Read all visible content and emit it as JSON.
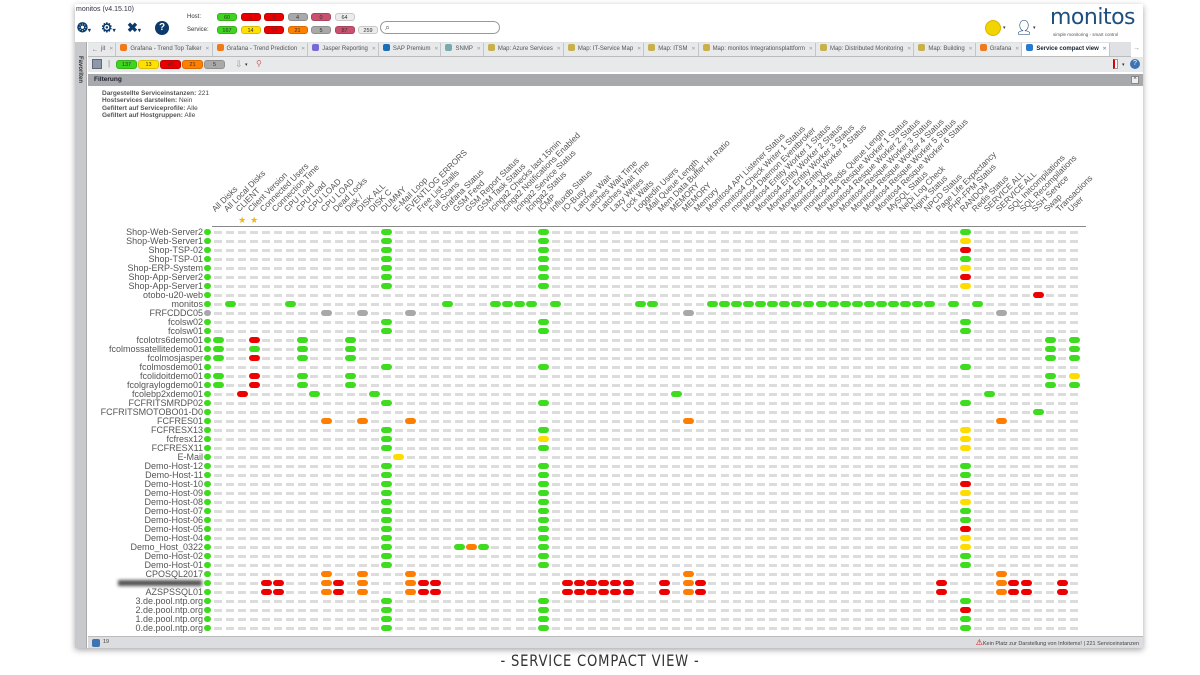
{
  "app": {
    "title": "monitos (v4.15.10)",
    "search_placeholder": "",
    "logo": "monitos",
    "logo_tagline": "simple monitoring - smart control"
  },
  "host_counts": {
    "label": "Host:",
    "values": [
      {
        "value": "60",
        "color": "#3fd41f"
      },
      {
        "value": "0",
        "color": "#e80000"
      },
      {
        "value": "0",
        "color": "#e80000"
      },
      {
        "value": "4",
        "color": "#a9a9a9"
      },
      {
        "value": "0",
        "color": "#c9506f"
      },
      {
        "value": "64",
        "color": "#ececec"
      }
    ]
  },
  "service_counts": {
    "label": "Service:",
    "values": [
      {
        "value": "167",
        "color": "#3fd41f"
      },
      {
        "value": "14",
        "color": "#ffe000"
      },
      {
        "value": "52",
        "color": "#e80000"
      },
      {
        "value": "21",
        "color": "#ff7f00"
      },
      {
        "value": "5",
        "color": "#a9a9a9"
      },
      {
        "value": "87",
        "color": "#c9506f"
      },
      {
        "value": "259",
        "color": "#ececec"
      }
    ]
  },
  "sidebar": {
    "label": "Favoriten"
  },
  "tabs": [
    {
      "label": "jit",
      "icon": "back-icon"
    },
    {
      "label": "Grafana - Trend Top Talker",
      "icon": "grafana-icon"
    },
    {
      "label": "Grafana - Trend Prediction",
      "icon": "grafana-icon"
    },
    {
      "label": "Jasper Reporting",
      "icon": "jasper-icon"
    },
    {
      "label": "SAP Premium",
      "icon": "sap-icon"
    },
    {
      "label": "SNMP",
      "icon": "snmp-icon"
    },
    {
      "label": "Map: Azure Services",
      "icon": "map-icon"
    },
    {
      "label": "Map: IT-Service Map",
      "icon": "map-icon"
    },
    {
      "label": "Map: ITSM",
      "icon": "map-icon"
    },
    {
      "label": "Map: monitos Integrationsplattform",
      "icon": "map-icon"
    },
    {
      "label": "Map: Distributed Monitoring",
      "icon": "map-icon"
    },
    {
      "label": "Map: Building",
      "icon": "map-icon"
    },
    {
      "label": "Grafana",
      "icon": "grafana-icon"
    },
    {
      "label": "Service compact view",
      "icon": "grid-icon",
      "active": true
    }
  ],
  "toolbar": {
    "counts": [
      {
        "value": "137",
        "color": "#3fd41f"
      },
      {
        "value": "13",
        "color": "#ffe000"
      },
      {
        "value": "45",
        "color": "#e80000"
      },
      {
        "value": "21",
        "color": "#ff7f00"
      },
      {
        "value": "5",
        "color": "#a9a9a9"
      }
    ]
  },
  "filter": {
    "title": "Filterung",
    "lines": [
      {
        "label": "Dargestellte Serviceinstanzen:",
        "value": "221"
      },
      {
        "label": "Hostservices darstellen:",
        "value": "Nein"
      },
      {
        "label": "Gefiltert auf Serviceprofile:",
        "value": "Alle"
      },
      {
        "label": "Gefiltert auf Hostgruppen:",
        "value": "Alle"
      }
    ]
  },
  "state_colors": {
    "g": "#3ddc1e",
    "y": "#ffdc00",
    "r": "#ee0000",
    "o": "#ff7d00",
    "x": "#a8a8a8"
  },
  "favorite_columns": [
    2,
    3
  ],
  "columns": [
    "All Disks",
    "All Local Disks",
    "CLIENT",
    "Client Version",
    "Connected Users",
    "Connection Time",
    "CPU Load",
    "CPU Load",
    "CPU LOAD",
    "CPU LOAD",
    "Dead Locks",
    "Disk /",
    "DISK ALL",
    "DISK C",
    "DUMMY",
    "E-Mail Loop",
    "EVENTLOG ERRORS",
    "Free List Stalls",
    "Full Scans",
    "Grafana Status",
    "GSM Feed",
    "GSM Report Status",
    "GSM Task Status",
    "Icinga2 Checks last 15min",
    "Icinga2 Notifications Enabled",
    "Icinga2 Service Status",
    "Icinga2 Status",
    "ICMP",
    "Influxdb Status",
    "IO-Busy",
    "Latches Wait",
    "Latches Wait Time",
    "Latches Wait Time",
    "Lazy Writes",
    "Lock Waits",
    "Loggedin Users",
    "Mail Queue Length",
    "Mem Data Buffer Hit Ratio",
    "MEMORY",
    "MEMORY",
    "Memory",
    "Monitos4 API Listener Status",
    "monitos4 Check Writer 1 Status",
    "monitos4 Daemon Eventbroker",
    "Monitos4 Entity Worker 1 Status",
    "Monitos4 Entity Worker 2 Status",
    "Monitos4 Entity Worker 3 Status",
    "Monitos4 Entity Worker 4 Status",
    "Monitos4 Jobs",
    "monitos4 Redis Queue Length",
    "Monitos4 Resque Worker 1 Status",
    "Monitos4 Resque Worker 2 Status",
    "Monitos4 Resque Worker 3 Status",
    "Monitos4 Resque Worker 4 Status",
    "Monitos4 Resque Worker 5 Status",
    "Monitos4 Resque Worker 6 Status",
    "MySQL Status",
    "NeDi Log Check",
    "Nginx Status",
    "NPCD Status",
    "Page Life Expectancy",
    "PHP-FPM Status",
    "RANDOM",
    "Redis Status",
    "SERVICE ALL",
    "SERVICE ALL",
    "SQL Initcompilations",
    "SQL Recompilations",
    "SSH Service",
    "Swap",
    "Transactions",
    "User"
  ],
  "rows": [
    {
      "name": "Shop-Web-Server2",
      "host": "g",
      "cells": {
        "14": "g",
        "27": "g",
        "62": "g"
      }
    },
    {
      "name": "Shop-Web-Server1",
      "host": "g",
      "cells": {
        "14": "g",
        "27": "g",
        "62": "y"
      }
    },
    {
      "name": "Shop-TSP-02",
      "host": "g",
      "cells": {
        "14": "g",
        "27": "g",
        "62": "r"
      }
    },
    {
      "name": "Shop-TSP-01",
      "host": "g",
      "cells": {
        "14": "g",
        "27": "g",
        "62": "g"
      }
    },
    {
      "name": "Shop-ERP-System",
      "host": "g",
      "cells": {
        "14": "g",
        "27": "g",
        "62": "y"
      }
    },
    {
      "name": "Shop-App-Server2",
      "host": "g",
      "cells": {
        "14": "g",
        "27": "g",
        "62": "r"
      }
    },
    {
      "name": "Shop-App-Server1",
      "host": "g",
      "cells": {
        "14": "g",
        "27": "g",
        "62": "y"
      }
    },
    {
      "name": "otobo-u20-web",
      "host": "g",
      "cells": {
        "68": "r"
      }
    },
    {
      "name": "monitos",
      "host": "g",
      "cells": {
        "1": "g",
        "6": "g",
        "19": "g",
        "23": "g",
        "24": "g",
        "25": "g",
        "26": "g",
        "28": "g",
        "35": "g",
        "36": "g",
        "41": "g",
        "42": "g",
        "43": "g",
        "44": "g",
        "45": "g",
        "46": "g",
        "47": "g",
        "48": "g",
        "49": "g",
        "50": "g",
        "51": "g",
        "52": "g",
        "53": "g",
        "54": "g",
        "55": "g",
        "56": "g",
        "57": "g",
        "58": "g",
        "59": "g",
        "61": "g",
        "63": "g"
      }
    },
    {
      "name": "FRFCDDC05",
      "host": "x",
      "cells": {
        "9": "x",
        "12": "x",
        "16": "x",
        "39": "x",
        "65": "x"
      }
    },
    {
      "name": "fcolsw02",
      "host": "g",
      "cells": {
        "14": "g",
        "27": "g",
        "62": "g"
      }
    },
    {
      "name": "fcolsw01",
      "host": "g",
      "cells": {
        "14": "g",
        "27": "g",
        "62": "g"
      }
    },
    {
      "name": "fcolotrs6demo01",
      "host": "g",
      "cells": {
        "0": "g",
        "3": "r",
        "7": "g",
        "11": "g",
        "69": "g",
        "71": "g"
      }
    },
    {
      "name": "fcolmossatellitedemo01",
      "host": "g",
      "cells": {
        "0": "g",
        "3": "g",
        "7": "g",
        "11": "g",
        "69": "g",
        "71": "g"
      }
    },
    {
      "name": "fcolmosjasper",
      "host": "g",
      "cells": {
        "0": "g",
        "3": "r",
        "7": "g",
        "11": "g",
        "69": "g",
        "71": "g"
      }
    },
    {
      "name": "fcolmosdemo01",
      "host": "g",
      "cells": {
        "14": "g",
        "27": "g",
        "62": "g"
      }
    },
    {
      "name": "fcolidoitdemo01",
      "host": "g",
      "cells": {
        "0": "g",
        "3": "r",
        "7": "g",
        "11": "g",
        "69": "g",
        "71": "y"
      }
    },
    {
      "name": "fcolgraylogdemo01",
      "host": "g",
      "cells": {
        "0": "g",
        "3": "r",
        "7": "g",
        "11": "g",
        "69": "g",
        "71": "g"
      }
    },
    {
      "name": "fcolebp2xdemo01",
      "host": "g",
      "cells": {
        "2": "r",
        "8": "g",
        "13": "g",
        "38": "g",
        "64": "g"
      }
    },
    {
      "name": "FCFRITSMRDP02",
      "host": "g",
      "cells": {
        "14": "g",
        "27": "g",
        "62": "g"
      }
    },
    {
      "name": "FCFRITSMOTOBO01-D0",
      "host": "g",
      "cells": {
        "68": "g"
      }
    },
    {
      "name": "FCFRES01",
      "host": "g",
      "cells": {
        "9": "o",
        "12": "o",
        "16": "o",
        "39": "o",
        "65": "o"
      }
    },
    {
      "name": "FCFRESX13",
      "host": "g",
      "cells": {
        "14": "g",
        "27": "g",
        "62": "y"
      }
    },
    {
      "name": "fcfresx12",
      "host": "g",
      "cells": {
        "14": "g",
        "27": "y",
        "62": "y"
      }
    },
    {
      "name": "FCFRESX11",
      "host": "g",
      "cells": {
        "14": "g",
        "27": "g",
        "62": "y"
      }
    },
    {
      "name": "E-Mail",
      "host": "g",
      "cells": {
        "15": "y"
      }
    },
    {
      "name": "Demo-Host-12",
      "host": "g",
      "cells": {
        "14": "g",
        "27": "g",
        "62": "g"
      }
    },
    {
      "name": "Demo-Host-11",
      "host": "g",
      "cells": {
        "14": "g",
        "27": "g",
        "62": "g"
      }
    },
    {
      "name": "Demo-Host-10",
      "host": "g",
      "cells": {
        "14": "g",
        "27": "g",
        "62": "r"
      }
    },
    {
      "name": "Demo-Host-09",
      "host": "g",
      "cells": {
        "14": "g",
        "27": "g",
        "62": "y"
      }
    },
    {
      "name": "Demo-Host-08",
      "host": "g",
      "cells": {
        "14": "g",
        "27": "g",
        "62": "y"
      }
    },
    {
      "name": "Demo-Host-07",
      "host": "g",
      "cells": {
        "14": "g",
        "27": "g",
        "62": "g"
      }
    },
    {
      "name": "Demo-Host-06",
      "host": "g",
      "cells": {
        "14": "g",
        "27": "g",
        "62": "g"
      }
    },
    {
      "name": "Demo-Host-05",
      "host": "g",
      "cells": {
        "14": "g",
        "27": "g",
        "62": "r"
      }
    },
    {
      "name": "Demo-Host-04",
      "host": "g",
      "cells": {
        "14": "g",
        "27": "g",
        "62": "y"
      }
    },
    {
      "name": "Demo_Host_0322",
      "host": "g",
      "cells": {
        "14": "g",
        "20": "g",
        "21": "o",
        "22": "g",
        "27": "g",
        "62": "y"
      }
    },
    {
      "name": "Demo-Host-02",
      "host": "g",
      "cells": {
        "14": "g",
        "27": "g",
        "62": "g"
      }
    },
    {
      "name": "Demo-Host-01",
      "host": "g",
      "cells": {
        "14": "g",
        "27": "g",
        "62": "g"
      }
    },
    {
      "name": "CPOSQL2017",
      "host": "g",
      "cells": {
        "9": "o",
        "12": "o",
        "16": "o",
        "39": "o",
        "65": "o"
      }
    },
    {
      "name": "",
      "host": "g",
      "blurred": true,
      "cells": {
        "4": "r",
        "5": "r",
        "9": "o",
        "10": "r",
        "12": "o",
        "16": "o",
        "17": "r",
        "18": "r",
        "29": "r",
        "30": "r",
        "31": "r",
        "32": "r",
        "33": "r",
        "34": "r",
        "37": "r",
        "39": "o",
        "40": "r",
        "60": "r",
        "65": "o",
        "66": "r",
        "67": "r",
        "70": "r"
      }
    },
    {
      "name": "AZSPSSQL01",
      "host": "g",
      "cells": {
        "4": "r",
        "5": "r",
        "9": "o",
        "10": "r",
        "12": "o",
        "16": "o",
        "17": "r",
        "18": "r",
        "29": "r",
        "30": "r",
        "31": "r",
        "32": "r",
        "33": "r",
        "34": "r",
        "37": "r",
        "39": "o",
        "40": "r",
        "60": "r",
        "65": "o",
        "66": "r",
        "67": "r",
        "70": "r"
      }
    },
    {
      "name": "3.de.pool.ntp.org",
      "host": "g",
      "cells": {
        "14": "g",
        "27": "g",
        "62": "g"
      }
    },
    {
      "name": "2.de.pool.ntp.org",
      "host": "g",
      "cells": {
        "14": "g",
        "27": "g",
        "62": "r"
      }
    },
    {
      "name": "1.de.pool.ntp.org",
      "host": "g",
      "cells": {
        "14": "g",
        "27": "g",
        "62": "g"
      }
    },
    {
      "name": "0.de.pool.ntp.org",
      "host": "g",
      "cells": {
        "14": "g",
        "27": "g",
        "62": "g"
      }
    }
  ],
  "footer": {
    "left_count": "19",
    "message": "Kein Platz zur Darstellung von Infoitems!",
    "instances": "| 221 Serviceinstanzen"
  },
  "caption": "- SERVICE COMPACT VIEW -"
}
